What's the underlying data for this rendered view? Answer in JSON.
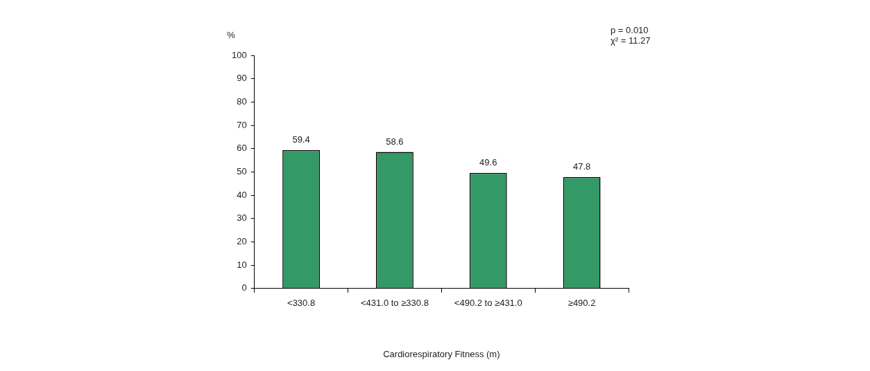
{
  "chart_data": {
    "type": "bar",
    "xlabel": "Cardiorespiratory Fitness (m)",
    "ylabel": "%",
    "categories": [
      "<330.8",
      "<431.0 to ≥330.8",
      "<490.2 to ≥431.0",
      "≥490.2"
    ],
    "values": [
      59.4,
      58.6,
      49.6,
      47.8
    ],
    "color": "#339966",
    "ylim": [
      0,
      100
    ],
    "yticks": [
      0,
      10,
      20,
      30,
      40,
      50,
      60,
      70,
      80,
      90,
      100
    ],
    "grid": false,
    "legend": false,
    "data_labels": true,
    "annotations": [
      "p = 0.010",
      "χ² = 11.27"
    ]
  }
}
